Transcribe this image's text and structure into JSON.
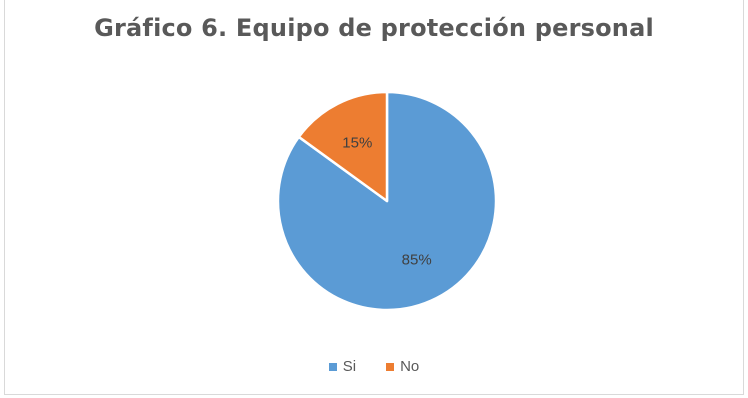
{
  "chart_data": {
    "type": "pie",
    "title": "Gráfico 6. Equipo de protección personal",
    "legend_position": "bottom",
    "slices": [
      {
        "label": "Si",
        "value": 85,
        "data_label": "85%",
        "color": "#5b9bd5"
      },
      {
        "label": "No",
        "value": 15,
        "data_label": "15%",
        "color": "#ed7d31"
      }
    ]
  }
}
